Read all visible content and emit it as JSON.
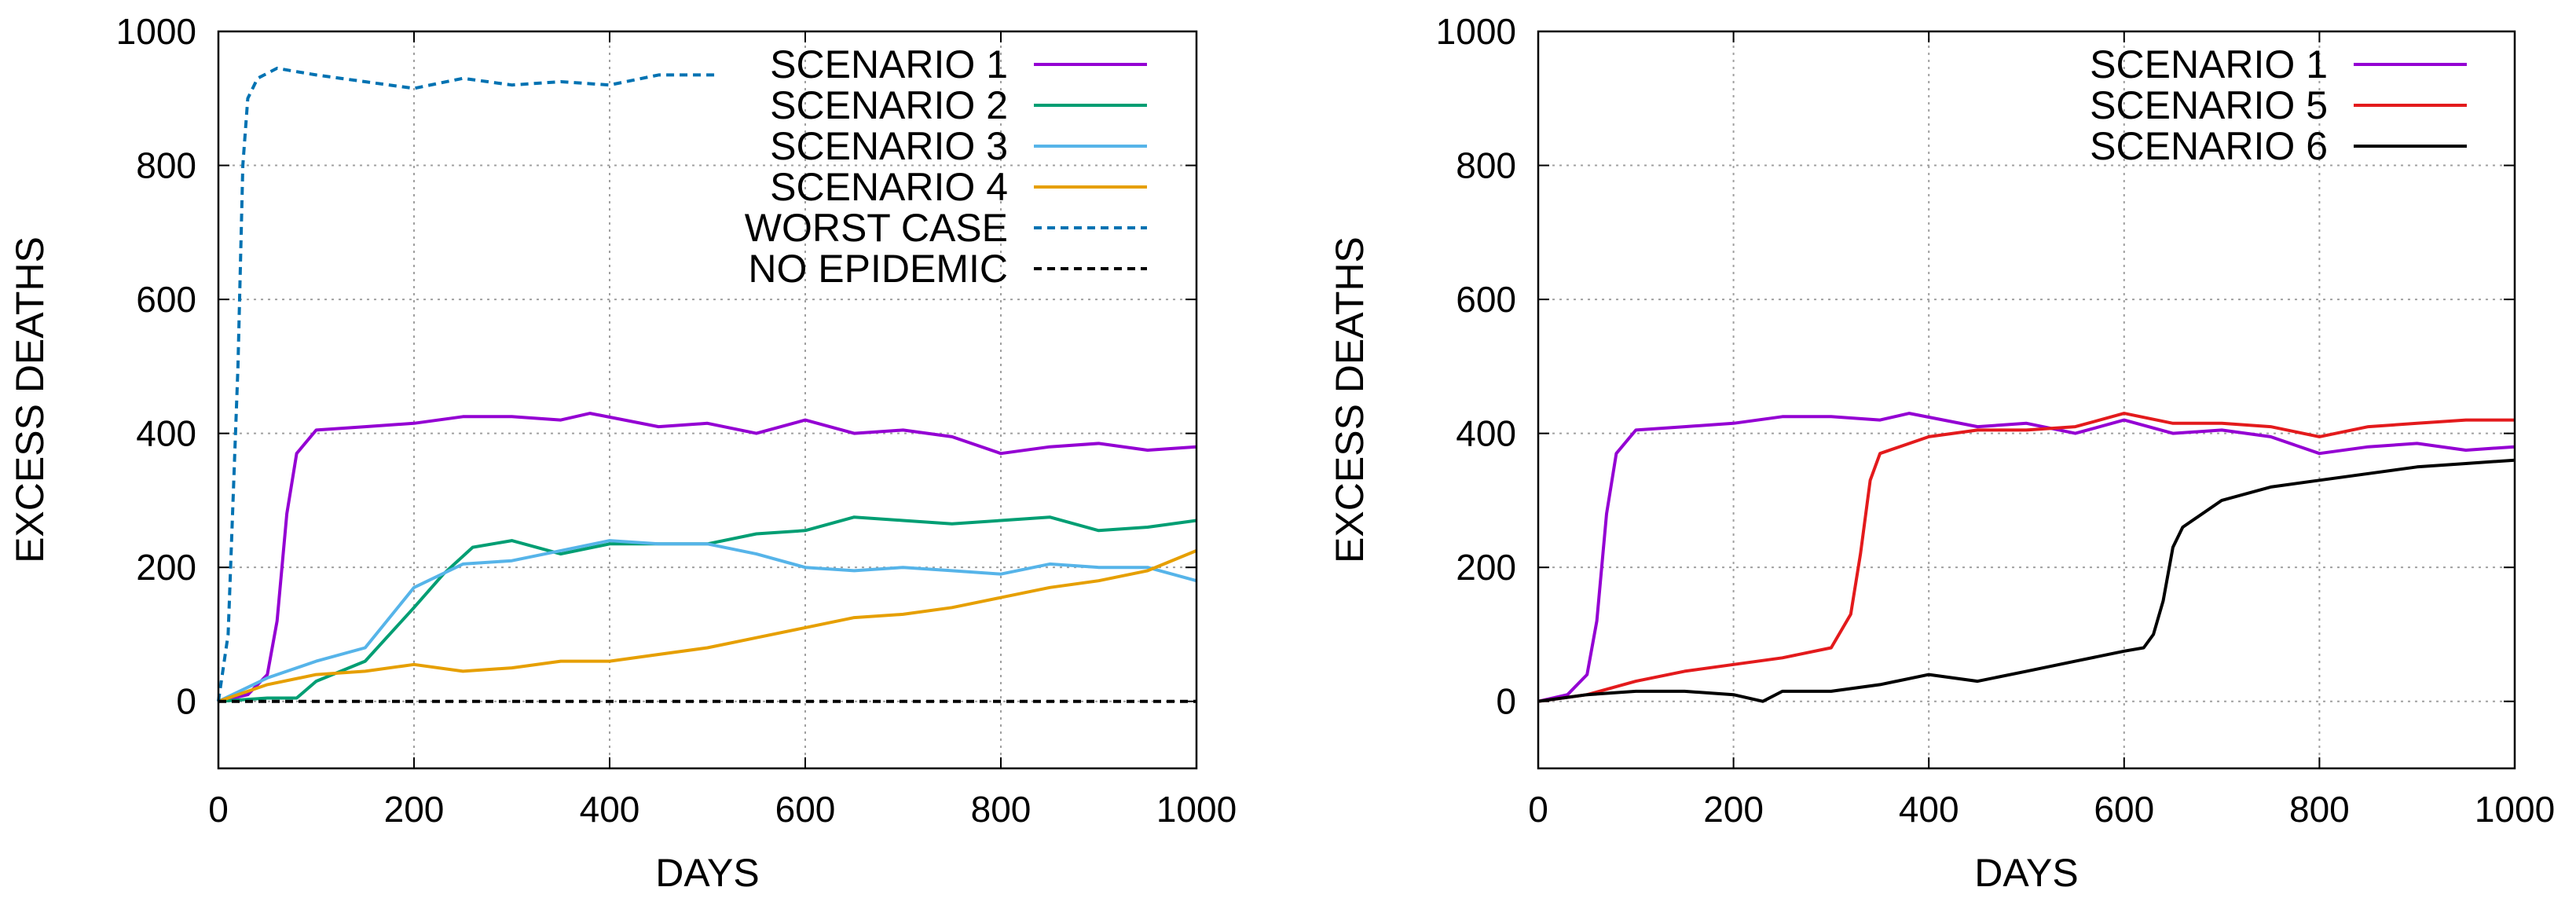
{
  "chart_data": [
    {
      "type": "line",
      "xlabel": "DAYS",
      "ylabel": "EXCESS DEATHS",
      "xlim": [
        0,
        1000
      ],
      "ylim": [
        -100,
        1000
      ],
      "xticks": [
        "0",
        "200",
        "400",
        "600",
        "800",
        "1000"
      ],
      "yticks": [
        "0",
        "200",
        "400",
        "600",
        "800",
        "1000"
      ],
      "xtick_values": [
        0,
        200,
        400,
        600,
        800,
        1000
      ],
      "ytick_values": [
        0,
        200,
        400,
        600,
        800,
        1000
      ],
      "grid": true,
      "legend_position": "top-right",
      "series": [
        {
          "name": "SCENARIO 1",
          "color": "#9400d3",
          "style": "solid",
          "x": [
            0,
            30,
            50,
            60,
            70,
            80,
            100,
            150,
            200,
            250,
            300,
            350,
            380,
            450,
            500,
            550,
            600,
            650,
            700,
            750,
            800,
            850,
            900,
            950,
            1000
          ],
          "y": [
            0,
            10,
            40,
            120,
            280,
            370,
            405,
            410,
            415,
            425,
            425,
            420,
            430,
            410,
            415,
            400,
            420,
            400,
            405,
            395,
            370,
            380,
            385,
            375,
            380
          ]
        },
        {
          "name": "SCENARIO 2",
          "color": "#009e73",
          "style": "solid",
          "x": [
            0,
            50,
            80,
            100,
            150,
            200,
            230,
            260,
            300,
            350,
            400,
            500,
            550,
            600,
            650,
            700,
            750,
            800,
            850,
            900,
            950,
            1000
          ],
          "y": [
            0,
            5,
            5,
            30,
            60,
            140,
            190,
            230,
            240,
            220,
            235,
            235,
            250,
            255,
            275,
            270,
            265,
            270,
            275,
            255,
            260,
            270
          ]
        },
        {
          "name": "SCENARIO 3",
          "color": "#56b4e9",
          "style": "solid",
          "x": [
            0,
            50,
            100,
            150,
            200,
            250,
            300,
            350,
            400,
            450,
            500,
            550,
            600,
            650,
            700,
            750,
            800,
            850,
            900,
            950,
            1000
          ],
          "y": [
            0,
            35,
            60,
            80,
            170,
            205,
            210,
            225,
            240,
            235,
            235,
            220,
            200,
            195,
            200,
            195,
            190,
            205,
            200,
            200,
            180
          ]
        },
        {
          "name": "SCENARIO 4",
          "color": "#e69f00",
          "style": "solid",
          "x": [
            0,
            50,
            100,
            150,
            200,
            250,
            300,
            350,
            400,
            450,
            500,
            550,
            600,
            650,
            700,
            750,
            800,
            850,
            900,
            950,
            1000
          ],
          "y": [
            0,
            25,
            40,
            45,
            55,
            45,
            50,
            60,
            60,
            70,
            80,
            95,
            110,
            125,
            130,
            140,
            155,
            170,
            180,
            195,
            225
          ]
        },
        {
          "name": "WORST CASE",
          "color": "#0072b2",
          "style": "dashed",
          "x": [
            0,
            10,
            20,
            25,
            30,
            40,
            60,
            80,
            100,
            150,
            200,
            250,
            300,
            350,
            400,
            450,
            500,
            510
          ],
          "y": [
            0,
            100,
            500,
            800,
            900,
            930,
            945,
            940,
            935,
            925,
            915,
            930,
            920,
            925,
            920,
            935,
            935,
            935
          ]
        },
        {
          "name": "NO EPIDEMIC",
          "color": "#000000",
          "style": "dashed",
          "x": [
            0,
            1000
          ],
          "y": [
            0,
            0
          ]
        }
      ]
    },
    {
      "type": "line",
      "xlabel": "DAYS",
      "ylabel": "EXCESS DEATHS",
      "xlim": [
        0,
        1000
      ],
      "ylim": [
        -100,
        1000
      ],
      "xticks": [
        "0",
        "200",
        "400",
        "600",
        "800",
        "1000"
      ],
      "yticks": [
        "0",
        "200",
        "400",
        "600",
        "800",
        "1000"
      ],
      "xtick_values": [
        0,
        200,
        400,
        600,
        800,
        1000
      ],
      "ytick_values": [
        0,
        200,
        400,
        600,
        800,
        1000
      ],
      "grid": true,
      "legend_position": "top-right",
      "series": [
        {
          "name": "SCENARIO 1",
          "color": "#9400d3",
          "style": "solid",
          "x": [
            0,
            30,
            50,
            60,
            70,
            80,
            100,
            150,
            200,
            250,
            300,
            350,
            380,
            450,
            500,
            550,
            600,
            650,
            700,
            750,
            800,
            850,
            900,
            950,
            1000
          ],
          "y": [
            0,
            10,
            40,
            120,
            280,
            370,
            405,
            410,
            415,
            425,
            425,
            420,
            430,
            410,
            415,
            400,
            420,
            400,
            405,
            395,
            370,
            380,
            385,
            375,
            380
          ]
        },
        {
          "name": "SCENARIO 5",
          "color": "#e31a1c",
          "style": "solid",
          "x": [
            0,
            50,
            100,
            150,
            200,
            250,
            300,
            320,
            330,
            340,
            350,
            400,
            450,
            500,
            550,
            600,
            650,
            700,
            750,
            800,
            850,
            900,
            950,
            1000
          ],
          "y": [
            0,
            10,
            30,
            45,
            55,
            65,
            80,
            130,
            220,
            330,
            370,
            395,
            405,
            405,
            410,
            430,
            415,
            415,
            410,
            395,
            410,
            415,
            420,
            420
          ]
        },
        {
          "name": "SCENARIO 6",
          "color": "#000000",
          "style": "solid",
          "x": [
            0,
            50,
            100,
            150,
            200,
            230,
            250,
            300,
            350,
            400,
            450,
            500,
            550,
            600,
            620,
            630,
            640,
            650,
            660,
            700,
            750,
            800,
            850,
            900,
            950,
            1000
          ],
          "y": [
            0,
            10,
            15,
            15,
            10,
            0,
            15,
            15,
            25,
            40,
            30,
            45,
            60,
            75,
            80,
            100,
            150,
            230,
            260,
            300,
            320,
            330,
            340,
            350,
            355,
            360
          ]
        }
      ]
    }
  ]
}
